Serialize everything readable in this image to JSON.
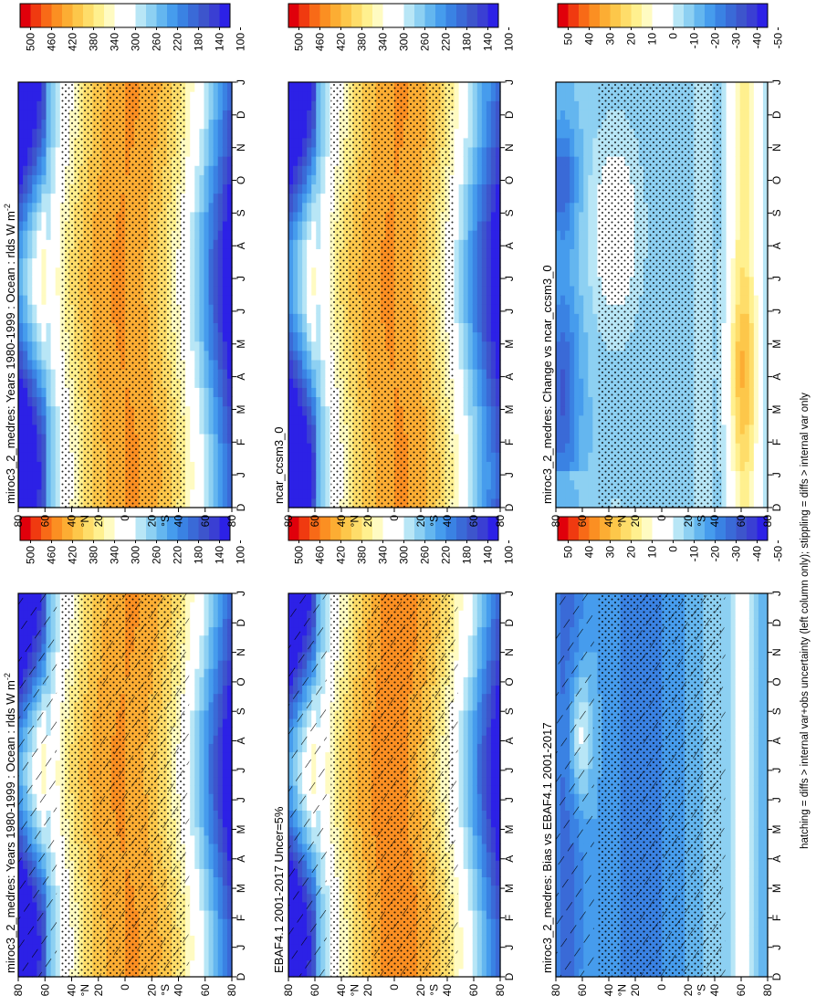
{
  "figure": {
    "footnote": "hatching = diffs > internal var+obs uncertainty (left column only); stippling = diffs > internal var only"
  },
  "colorbars": {
    "absolute": {
      "labels": [
        "500",
        "460",
        "420",
        "380",
        "340",
        "300",
        "260",
        "220",
        "180",
        "140",
        "100"
      ]
    },
    "difference": {
      "labels": [
        "50",
        "40",
        "30",
        "20",
        "10",
        "0",
        "-10",
        "-20",
        "-30",
        "-40",
        "-50"
      ]
    }
  },
  "palettes": {
    "absolute": [
      "#e0000b",
      "#f03a10",
      "#f86a17",
      "#fb8f22",
      "#fcad33",
      "#fdc74a",
      "#fedd6a",
      "#fff08f",
      "#fffbc2",
      "#ffffff",
      "#ffffff",
      "#b8e6f6",
      "#8dd0f2",
      "#64b6ef",
      "#469ced",
      "#3a82e3",
      "#3a6ad7",
      "#3d55cc",
      "#3a3fd3",
      "#2c21e6"
    ],
    "difference": [
      "#e0000b",
      "#f03a10",
      "#f86a17",
      "#fb8f22",
      "#fcad33",
      "#fdc74a",
      "#fedd6a",
      "#fff08f",
      "#fffbc2",
      "#ffffff",
      "#ffffff",
      "#b8e6f6",
      "#8dd0f2",
      "#64b6ef",
      "#469ced",
      "#3a82e3",
      "#3a6ad7",
      "#3d55cc",
      "#3a3fd3",
      "#2c21e6"
    ]
  },
  "axes": {
    "months": [
      "D",
      "J",
      "F",
      "M",
      "A",
      "M",
      "J",
      "J",
      "A",
      "S",
      "O",
      "N",
      "D",
      "J"
    ],
    "lat_labels": [
      "80",
      "60",
      "40",
      "20",
      "0",
      "20",
      "40",
      "60",
      "80"
    ],
    "lat_word_labels": [
      "°N",
      "°S"
    ]
  },
  "chart_data": [
    {
      "type": "heatmap",
      "title": "miroc3_2_medres: Years 1980-1999 : Ocean : rlds W m",
      "title_sup": "-2",
      "field": "absolute",
      "hatched": true,
      "stippled": true
    },
    {
      "type": "heatmap",
      "title": "EBAF4.1 2001-2017 Uncer=5%",
      "field": "absolute",
      "hatched": true,
      "stippled": true
    },
    {
      "type": "heatmap",
      "title": "miroc3_2_medres: Bias vs EBAF4.1 2001-2017",
      "field": "bias",
      "hatched": true,
      "stippled": true
    },
    {
      "type": "heatmap",
      "title": "miroc3_2_medres: Years 1980-1999 : Ocean : rlds W m",
      "title_sup": "-2",
      "field": "absolute",
      "hatched": false,
      "stippled": true
    },
    {
      "type": "heatmap",
      "title": "ncar_ccsm3_0",
      "field": "absolute",
      "hatched": false,
      "stippled": true
    },
    {
      "type": "heatmap",
      "title": "miroc3_2_medres: Change vs ncar_ccsm3_0",
      "field": "change",
      "hatched": false,
      "stippled": true
    }
  ]
}
